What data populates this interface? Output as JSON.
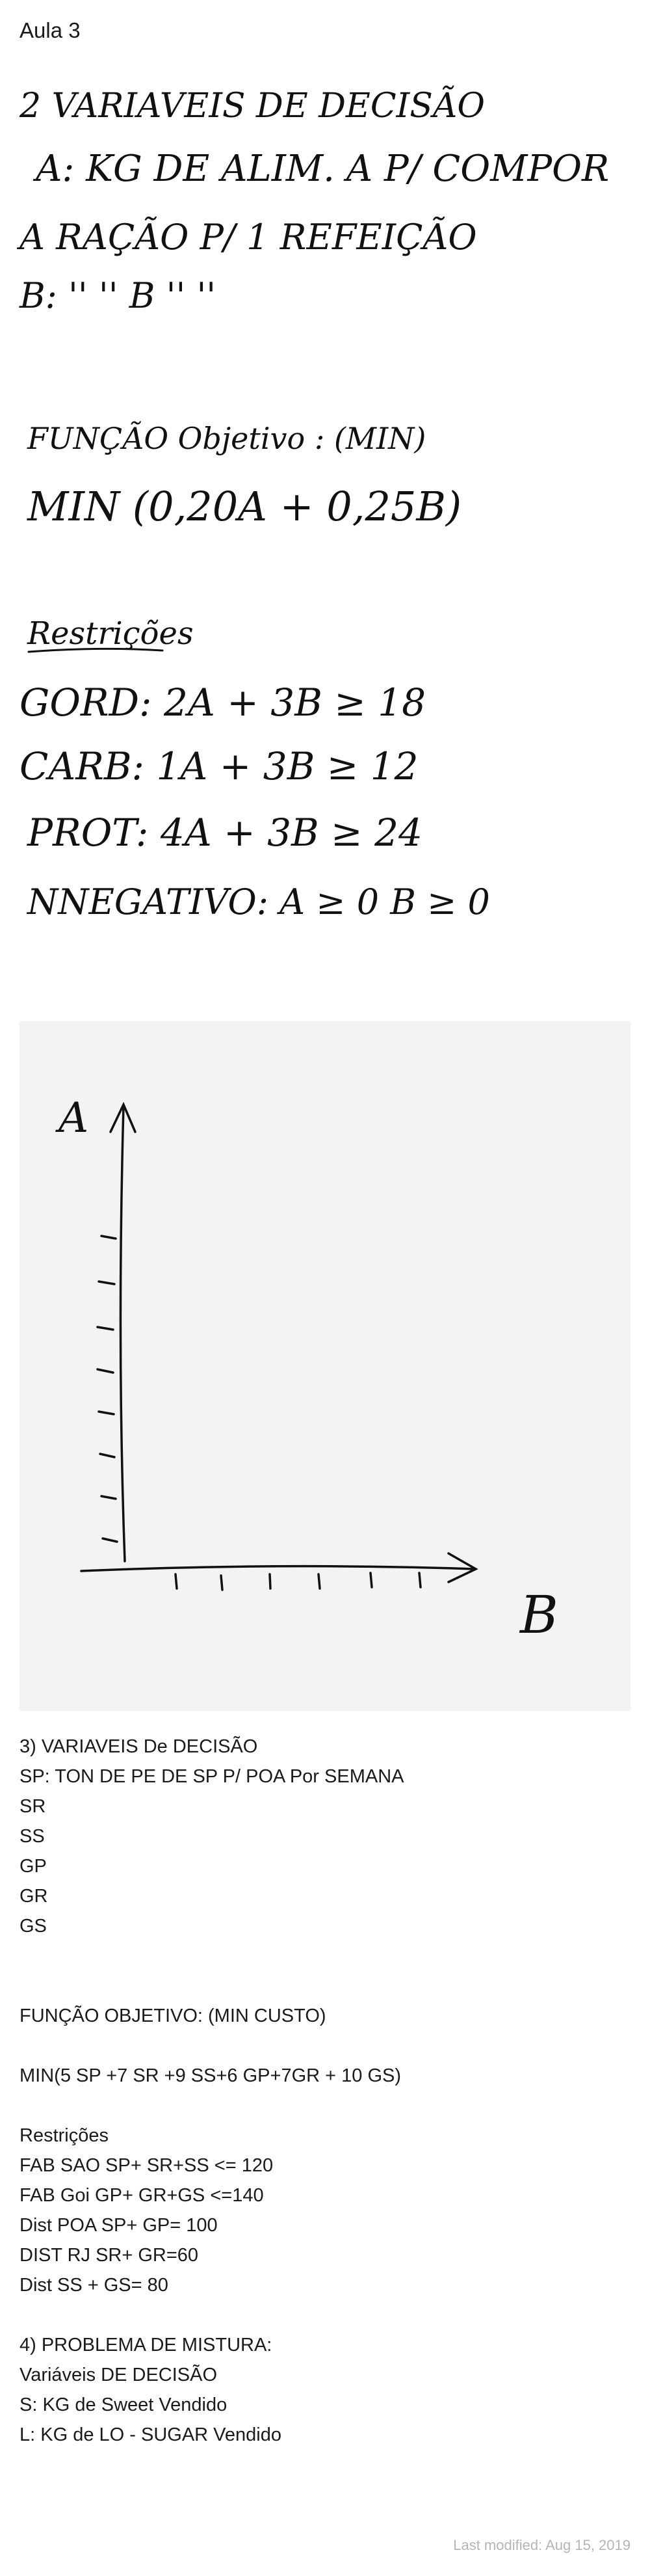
{
  "page": {
    "title": "Aula 3",
    "last_modified": "Last modified: Aug 15, 2019"
  },
  "handwritten": {
    "lines": [
      "2 VARIAVEIS DE DECISÃO",
      "A: KG DE ALIM. A P/ COMPOR",
      "A RAÇÃO P/ 1 REFEIÇÃO",
      "B: '' '' B '' ''",
      "FUNÇÃO Objetivo : (MIN)",
      "MIN (0,20A + 0,25B)",
      "Restrições",
      "GORD: 2A + 3B ≥ 18",
      "CARB: 1A + 3B ≥ 12",
      "PROT: 4A + 3B ≥ 24",
      "NNEGATIVO: A ≥ 0 B ≥ 0"
    ]
  },
  "sketch": {
    "y_axis_label": "A",
    "x_axis_label": "B"
  },
  "typed": {
    "section3_lines": [
      "3) VARIAVEIS De DECISÃO",
      "SP: TON DE PE DE SP P/ POA Por SEMANA",
      "SR",
      "SS",
      "GP",
      "GR",
      "GS"
    ],
    "objective_title": "FUNÇÃO OBJETIVO: (MIN CUSTO)",
    "objective_expr": "MIN(5 SP +7 SR +9 SS+6 GP+7GR + 10 GS)",
    "restrictions_lines": [
      "Restrições",
      "FAB SAO SP+ SR+SS <= 120",
      "FAB Goi GP+ GR+GS <=140",
      "Dist POA SP+ GP= 100",
      "DIST RJ SR+ GR=60",
      "Dist SS + GS= 80"
    ],
    "section4_lines": [
      "4) PROBLEMA DE MISTURA:",
      "Variáveis DE DECISÃO",
      "S: KG de Sweet Vendido",
      "L: KG de LO - SUGAR Vendido"
    ]
  }
}
